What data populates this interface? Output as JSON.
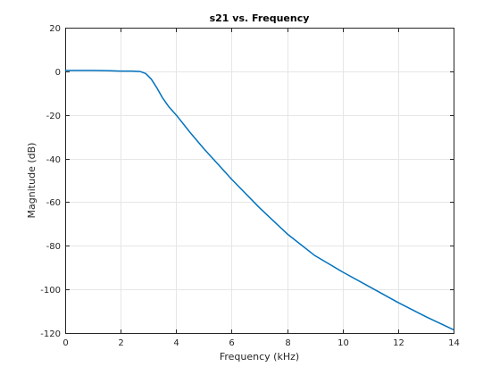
{
  "chart_data": {
    "type": "line",
    "title": "s21 vs. Frequency",
    "xlabel": "Frequency (kHz)",
    "ylabel": "Magnitude (dB)",
    "xlim": [
      0,
      14
    ],
    "ylim": [
      -120,
      20
    ],
    "xticks": [
      0,
      2,
      4,
      6,
      8,
      10,
      12,
      14
    ],
    "yticks": [
      -120,
      -100,
      -80,
      -60,
      -40,
      -20,
      0,
      20
    ],
    "grid": true,
    "legend": "none",
    "line_color": "#0072bd",
    "series": [
      {
        "x": [
          0,
          0.5,
          1.0,
          1.5,
          2.0,
          2.4,
          2.7,
          2.9,
          3.1,
          3.3,
          3.5,
          3.75,
          4.0,
          4.5,
          5.0,
          5.5,
          6.0,
          7.0,
          8.0,
          9.0,
          10.0,
          11.0,
          12.0,
          13.0,
          14.0
        ],
        "y": [
          0.4,
          0.4,
          0.4,
          0.3,
          0.1,
          0.1,
          -0.1,
          -1.0,
          -3.5,
          -7.5,
          -12.0,
          -16.5,
          -20.0,
          -28.0,
          -35.5,
          -42.5,
          -49.5,
          -62.5,
          -74.5,
          -84.5,
          -92.0,
          -99.0,
          -106.0,
          -112.5,
          -118.5
        ]
      }
    ]
  }
}
